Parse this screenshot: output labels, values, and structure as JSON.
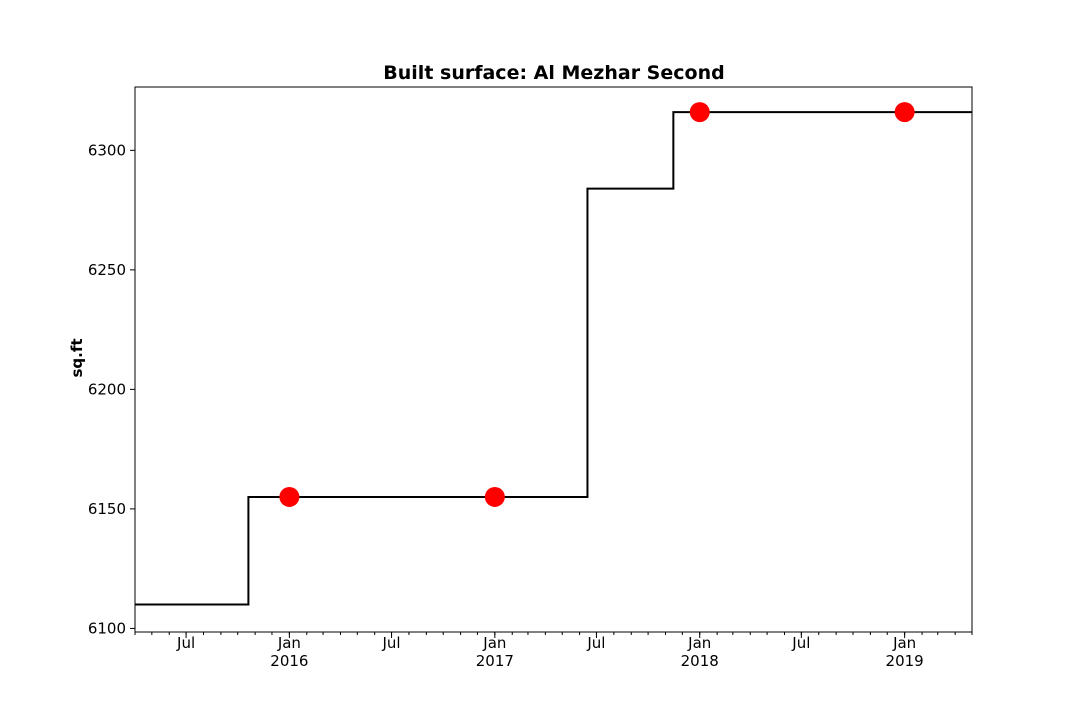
{
  "chart_data": {
    "type": "line",
    "title": "Built surface: Al Mezhar Second",
    "xlabel": "",
    "ylabel": "sq.ft",
    "xlim": [
      "2015-04-01",
      "2019-05-01"
    ],
    "ylim": [
      6098.5,
      6326.5
    ],
    "y_ticks": [
      6100,
      6150,
      6200,
      6250,
      6300
    ],
    "x_major_ticks": [
      {
        "date": "2015-07-01",
        "label": "Jul",
        "sublabel": ""
      },
      {
        "date": "2016-01-01",
        "label": "Jan",
        "sublabel": "2016"
      },
      {
        "date": "2016-07-01",
        "label": "Jul",
        "sublabel": ""
      },
      {
        "date": "2017-01-01",
        "label": "Jan",
        "sublabel": "2017"
      },
      {
        "date": "2017-07-01",
        "label": "Jul",
        "sublabel": ""
      },
      {
        "date": "2018-01-01",
        "label": "Jan",
        "sublabel": "2018"
      },
      {
        "date": "2018-07-01",
        "label": "Jul",
        "sublabel": ""
      },
      {
        "date": "2019-01-01",
        "label": "Jan",
        "sublabel": "2019"
      }
    ],
    "grid": false,
    "series": [
      {
        "style": "step",
        "color": "#000000",
        "points": [
          {
            "x": "2015-04-01",
            "y": 6110
          },
          {
            "x": "2015-10-20",
            "y": 6110
          },
          {
            "x": "2015-10-20",
            "y": 6155
          },
          {
            "x": "2017-06-15",
            "y": 6155
          },
          {
            "x": "2017-06-15",
            "y": 6284
          },
          {
            "x": "2017-11-15",
            "y": 6284
          },
          {
            "x": "2017-11-15",
            "y": 6316
          },
          {
            "x": "2019-05-01",
            "y": 6316
          }
        ]
      },
      {
        "style": "markers",
        "color": "#ff0000",
        "points": [
          {
            "x": "2016-01-01",
            "y": 6155
          },
          {
            "x": "2017-01-01",
            "y": 6155
          },
          {
            "x": "2018-01-01",
            "y": 6316
          },
          {
            "x": "2019-01-01",
            "y": 6316
          }
        ]
      }
    ]
  }
}
